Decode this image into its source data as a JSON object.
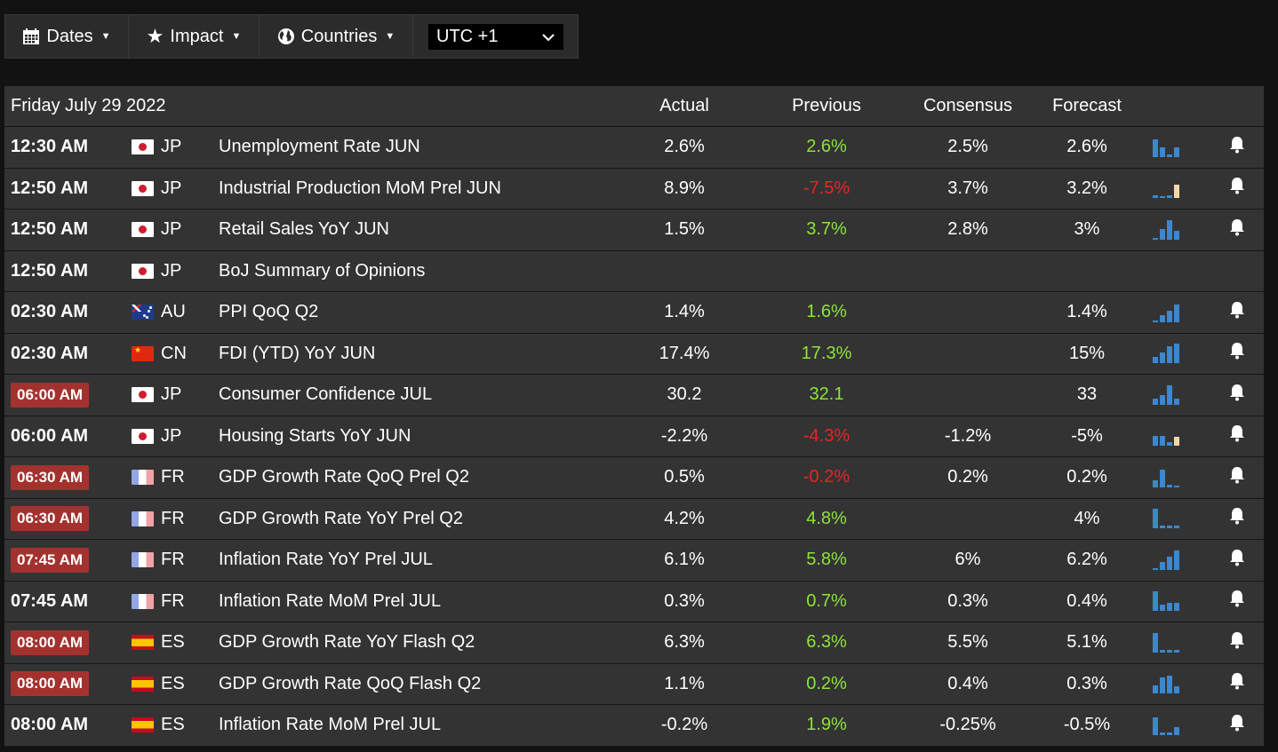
{
  "toolbar": {
    "dates_label": "Dates",
    "impact_label": "Impact",
    "countries_label": "Countries",
    "timezone_value": "UTC +1"
  },
  "table": {
    "date_header": "Friday July 29 2022",
    "columns": {
      "actual": "Actual",
      "previous": "Previous",
      "consensus": "Consensus",
      "forecast": "Forecast"
    },
    "rows": [
      {
        "time": "12:30 AM",
        "highlight": false,
        "country": "JP",
        "flag": "jp",
        "event": "Unemployment Rate JUN",
        "actual": "2.6%",
        "previous": "2.6%",
        "prev_dir": "pos",
        "consensus": "2.5%",
        "forecast": "2.6%",
        "spark": [
          0.9,
          0.5,
          0.15,
          0.5
        ],
        "spark_hl": -1,
        "bell": true
      },
      {
        "time": "12:50 AM",
        "highlight": false,
        "country": "JP",
        "flag": "jp",
        "event": "Industrial Production MoM Prel JUN",
        "actual": "8.9%",
        "previous": "-7.5%",
        "prev_dir": "neg",
        "consensus": "3.7%",
        "forecast": "3.2%",
        "spark": [
          0.15,
          0.1,
          0.15,
          0.7
        ],
        "spark_hl": 3,
        "bell": true
      },
      {
        "time": "12:50 AM",
        "highlight": false,
        "country": "JP",
        "flag": "jp",
        "event": "Retail Sales YoY JUN",
        "actual": "1.5%",
        "previous": "3.7%",
        "prev_dir": "pos",
        "consensus": "2.8%",
        "forecast": "3%",
        "spark": [
          0.1,
          0.55,
          1.0,
          0.45
        ],
        "spark_hl": -1,
        "bell": true
      },
      {
        "time": "12:50 AM",
        "highlight": false,
        "country": "JP",
        "flag": "jp",
        "event": "BoJ Summary of Opinions",
        "actual": "",
        "previous": "",
        "prev_dir": "",
        "consensus": "",
        "forecast": "",
        "spark": [],
        "spark_hl": -1,
        "bell": false
      },
      {
        "time": "02:30 AM",
        "highlight": false,
        "country": "AU",
        "flag": "au",
        "event": "PPI QoQ Q2",
        "actual": "1.4%",
        "previous": "1.6%",
        "prev_dir": "pos",
        "consensus": "",
        "forecast": "1.4%",
        "spark": [
          0.1,
          0.35,
          0.6,
          0.9
        ],
        "spark_hl": -1,
        "bell": true
      },
      {
        "time": "02:30 AM",
        "highlight": false,
        "country": "CN",
        "flag": "cn",
        "event": "FDI (YTD) YoY JUN",
        "actual": "17.4%",
        "previous": "17.3%",
        "prev_dir": "pos",
        "consensus": "",
        "forecast": "15%",
        "spark": [
          0.3,
          0.55,
          0.85,
          1.0
        ],
        "spark_hl": -1,
        "bell": true
      },
      {
        "time": "06:00 AM",
        "highlight": true,
        "country": "JP",
        "flag": "jp",
        "event": "Consumer Confidence JUL",
        "actual": "30.2",
        "previous": "32.1",
        "prev_dir": "pos",
        "consensus": "",
        "forecast": "33",
        "spark": [
          0.3,
          0.5,
          1.0,
          0.3
        ],
        "spark_hl": -1,
        "bell": true
      },
      {
        "time": "06:00 AM",
        "highlight": false,
        "country": "JP",
        "flag": "jp",
        "event": "Housing Starts YoY JUN",
        "actual": "-2.2%",
        "previous": "-4.3%",
        "prev_dir": "neg",
        "consensus": "-1.2%",
        "forecast": "-5%",
        "spark": [
          0.5,
          0.5,
          0.2,
          0.45
        ],
        "spark_hl": 3,
        "bell": true
      },
      {
        "time": "06:30 AM",
        "highlight": true,
        "country": "FR",
        "flag": "fr",
        "event": "GDP Growth Rate QoQ Prel Q2",
        "actual": "0.5%",
        "previous": "-0.2%",
        "prev_dir": "neg",
        "consensus": "0.2%",
        "forecast": "0.2%",
        "spark": [
          0.35,
          0.9,
          0.15,
          0.1
        ],
        "spark_hl": -1,
        "bell": true
      },
      {
        "time": "06:30 AM",
        "highlight": true,
        "country": "FR",
        "flag": "fr",
        "event": "GDP Growth Rate YoY Prel Q2",
        "actual": "4.2%",
        "previous": "4.8%",
        "prev_dir": "pos",
        "consensus": "",
        "forecast": "4%",
        "spark": [
          1.0,
          0.15,
          0.15,
          0.15
        ],
        "spark_hl": -1,
        "bell": true
      },
      {
        "time": "07:45 AM",
        "highlight": true,
        "country": "FR",
        "flag": "fr",
        "event": "Inflation Rate YoY Prel JUL",
        "actual": "6.1%",
        "previous": "5.8%",
        "prev_dir": "pos",
        "consensus": "6%",
        "forecast": "6.2%",
        "spark": [
          0.1,
          0.4,
          0.7,
          1.0
        ],
        "spark_hl": -1,
        "bell": true
      },
      {
        "time": "07:45 AM",
        "highlight": false,
        "country": "FR",
        "flag": "fr",
        "event": "Inflation Rate MoM Prel JUL",
        "actual": "0.3%",
        "previous": "0.7%",
        "prev_dir": "pos",
        "consensus": "0.3%",
        "forecast": "0.4%",
        "spark": [
          1.0,
          0.3,
          0.4,
          0.4
        ],
        "spark_hl": -1,
        "bell": true
      },
      {
        "time": "08:00 AM",
        "highlight": true,
        "country": "ES",
        "flag": "es",
        "event": "GDP Growth Rate YoY Flash Q2",
        "actual": "6.3%",
        "previous": "6.3%",
        "prev_dir": "pos",
        "consensus": "5.5%",
        "forecast": "5.1%",
        "spark": [
          1.0,
          0.15,
          0.15,
          0.15
        ],
        "spark_hl": -1,
        "bell": true
      },
      {
        "time": "08:00 AM",
        "highlight": true,
        "country": "ES",
        "flag": "es",
        "event": "GDP Growth Rate QoQ Flash Q2",
        "actual": "1.1%",
        "previous": "0.2%",
        "prev_dir": "pos",
        "consensus": "0.4%",
        "forecast": "0.3%",
        "spark": [
          0.4,
          0.8,
          0.9,
          0.35
        ],
        "spark_hl": -1,
        "bell": true
      },
      {
        "time": "08:00 AM",
        "highlight": false,
        "country": "ES",
        "flag": "es",
        "event": "Inflation Rate MoM Prel JUL",
        "actual": "-0.2%",
        "previous": "1.9%",
        "prev_dir": "pos",
        "consensus": "-0.25%",
        "forecast": "-0.5%",
        "spark": [
          0.9,
          0.15,
          0.15,
          0.4
        ],
        "spark_hl": -1,
        "bell": true
      }
    ]
  },
  "icons": {
    "dates": "calendar-icon",
    "impact": "star-icon",
    "countries": "globe-icon",
    "select": "chevron-down-icon",
    "bell": "bell-icon"
  },
  "colors": {
    "positive": "#8ee33a",
    "negative": "#ea2424",
    "highlight_badge": "#a3322f",
    "spark": "#3c87cf",
    "spark_highlight": "#f2d7a8"
  }
}
